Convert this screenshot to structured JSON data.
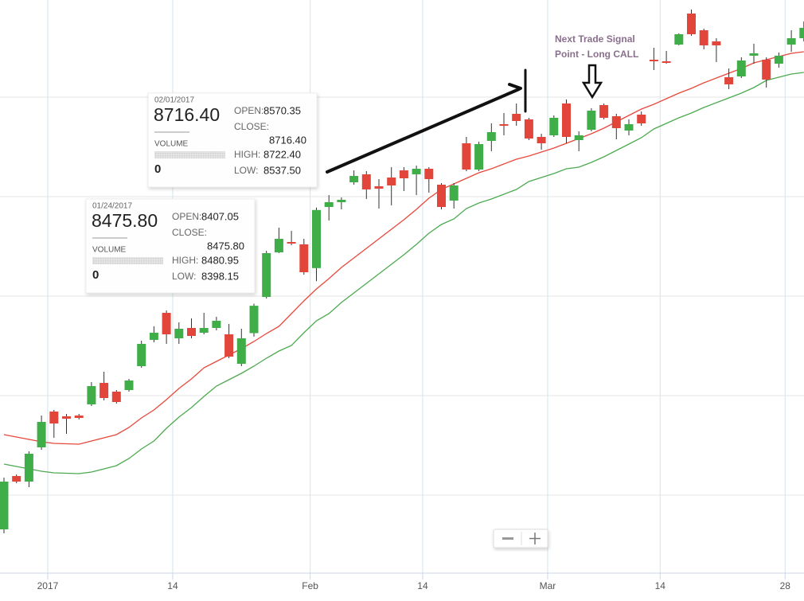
{
  "chart_data": {
    "type": "candlestick",
    "categories": [
      null,
      null,
      null,
      null,
      "2017",
      null,
      null,
      null,
      null,
      null,
      null,
      null,
      null,
      null,
      "14",
      null,
      null,
      null,
      null,
      null,
      null,
      null,
      null,
      null,
      null,
      "Feb",
      null,
      null,
      null,
      null,
      null,
      null,
      null,
      null,
      "14",
      null,
      null,
      null,
      null,
      null,
      null,
      null,
      null,
      null,
      "Mar",
      null,
      null,
      null,
      null,
      null,
      null,
      null,
      null,
      "14",
      null,
      null,
      null,
      null,
      null,
      null,
      null,
      null,
      null,
      "28",
      null
    ],
    "open": [
      7914,
      8048,
      8034,
      8120,
      8210,
      8198,
      8200,
      8228,
      8282,
      8260,
      8264,
      8324,
      8390,
      8458,
      8394,
      8420,
      8408,
      8420,
      8404,
      8330,
      8407.05,
      8498,
      8610,
      8636,
      8630,
      8570.35,
      8724,
      8736,
      8786,
      8806,
      8776,
      8798,
      8816,
      8806,
      8820,
      8780,
      8740,
      8884,
      8818,
      8890,
      8932,
      8958,
      8944,
      8900,
      8904,
      8984,
      8892,
      8918,
      8980,
      8952,
      8916,
      8956,
      9094,
      9090,
      9132,
      9210,
      9168,
      9140,
      9050,
      9052,
      9104,
      9094,
      9084,
      9132,
      9148
    ],
    "high": [
      8044,
      8052,
      8110,
      8200,
      8214,
      8204,
      8204,
      8284,
      8310,
      8264,
      8292,
      8388,
      8424,
      8464,
      8434,
      8444,
      8458,
      8448,
      8430,
      8418,
      8480.95,
      8614,
      8672,
      8664,
      8644,
      8722.4,
      8754,
      8748,
      8816,
      8814,
      8794,
      8824,
      8824,
      8828,
      8824,
      8784,
      8784,
      8900,
      8888,
      8934,
      8960,
      8984,
      8948,
      8908,
      8954,
      8994,
      8914,
      8972,
      8984,
      8958,
      8944,
      8964,
      9124,
      9116,
      9160,
      9220,
      9172,
      9148,
      9072,
      9100,
      9134,
      9100,
      9112,
      9168,
      9190
    ],
    "low": [
      7904,
      8030,
      8020,
      8114,
      8144,
      8154,
      8190,
      8224,
      8238,
      8230,
      8260,
      8320,
      8384,
      8380,
      8380,
      8394,
      8404,
      8414,
      8344,
      8324,
      8398.15,
      8494,
      8608,
      8628,
      8554,
      8537.5,
      8690,
      8718,
      8780,
      8744,
      8720,
      8728,
      8764,
      8754,
      8760,
      8718,
      8720,
      8814,
      8814,
      8864,
      8904,
      8928,
      8892,
      8868,
      8900,
      8884,
      8864,
      8914,
      8944,
      8894,
      8904,
      8928,
      9068,
      9084,
      9130,
      9154,
      9120,
      9088,
      9020,
      9048,
      9084,
      9024,
      9074,
      9114,
      9140
    ],
    "close": [
      8034,
      8034,
      8104,
      8184,
      8180,
      8192,
      8194,
      8274,
      8244,
      8234,
      8288,
      8380,
      8408,
      8404,
      8418,
      8400,
      8420,
      8438,
      8348,
      8394,
      8475.8,
      8608,
      8644,
      8632,
      8560,
      8716.4,
      8736,
      8742,
      8802,
      8768,
      8770,
      8778,
      8796,
      8820,
      8794,
      8724,
      8778,
      8818,
      8882,
      8912,
      8928,
      8940,
      8896,
      8884,
      8948,
      8900,
      8904,
      8966,
      8948,
      8922,
      8932,
      8934,
      9090,
      9086,
      9158,
      9158,
      9130,
      9130,
      9032,
      9092,
      9110,
      9044,
      9104,
      9148,
      9174
    ],
    "up_color": "#3fae49",
    "down_color": "#e2463b",
    "lines": [
      {
        "color": "#e8483c",
        "values": [
          8152,
          8146,
          8140,
          8134,
          8130,
          8129,
          8128,
          8136,
          8144,
          8152,
          8170,
          8194,
          8214,
          8240,
          8268,
          8292,
          8320,
          8336,
          8352,
          8368,
          8386,
          8406,
          8424,
          8456,
          8488,
          8518,
          8544,
          8572,
          8596,
          8620,
          8644,
          8668,
          8692,
          8718,
          8746,
          8768,
          8782,
          8796,
          8810,
          8820,
          8832,
          8844,
          8852,
          8862,
          8872,
          8884,
          8896,
          8908,
          8922,
          8938,
          8954,
          8970,
          8982,
          8996,
          9010,
          9022,
          9036,
          9048,
          9060,
          9072,
          9086,
          9094,
          9102,
          9110,
          9114
        ]
      },
      {
        "color": "#4caa50",
        "values": [
          8078,
          8072,
          8066,
          8060,
          8056,
          8055,
          8054,
          8058,
          8066,
          8074,
          8092,
          8116,
          8136,
          8168,
          8196,
          8220,
          8248,
          8274,
          8290,
          8306,
          8324,
          8344,
          8362,
          8376,
          8408,
          8438,
          8456,
          8484,
          8508,
          8532,
          8556,
          8580,
          8604,
          8630,
          8658,
          8680,
          8694,
          8720,
          8734,
          8744,
          8756,
          8768,
          8788,
          8798,
          8808,
          8820,
          8824,
          8836,
          8850,
          8866,
          8882,
          8898,
          8920,
          8934,
          8948,
          8960,
          8974,
          8986,
          8998,
          9010,
          9024,
          9042,
          9050,
          9058,
          9062
        ]
      }
    ],
    "ylim": [
      7804,
      9244
    ],
    "yticks": [
      8000,
      8250,
      8500,
      8750,
      9000
    ],
    "grid": true,
    "tooltip_fields": {
      "open": "OPEN:",
      "close": "CLOSE:",
      "high": "HIGH:",
      "low": "LOW:",
      "volume": "VOLUME"
    },
    "tooltips": [
      {
        "date": "01/24/2017",
        "price": "8475.80",
        "open": "8407.05",
        "close": "8475.80",
        "high": "8480.95",
        "low": "8398.15",
        "volume": 0
      },
      {
        "date": "02/01/2017",
        "price": "8716.40",
        "open": "8570.35",
        "close": "8716.40",
        "high": "8722.40",
        "low": "8537.50",
        "volume": 0
      }
    ],
    "annotation": [
      "Next Trade Signal",
      "Point - Long CALL"
    ]
  }
}
